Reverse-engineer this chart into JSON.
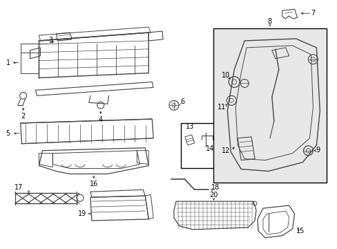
{
  "bg_color": "#ffffff",
  "border_color": "#000000",
  "line_color": "#444444",
  "box8_fill": "#e8e8e8",
  "box13_fill": "#ffffff",
  "figsize": [
    4.89,
    3.6
  ],
  "dpi": 100
}
